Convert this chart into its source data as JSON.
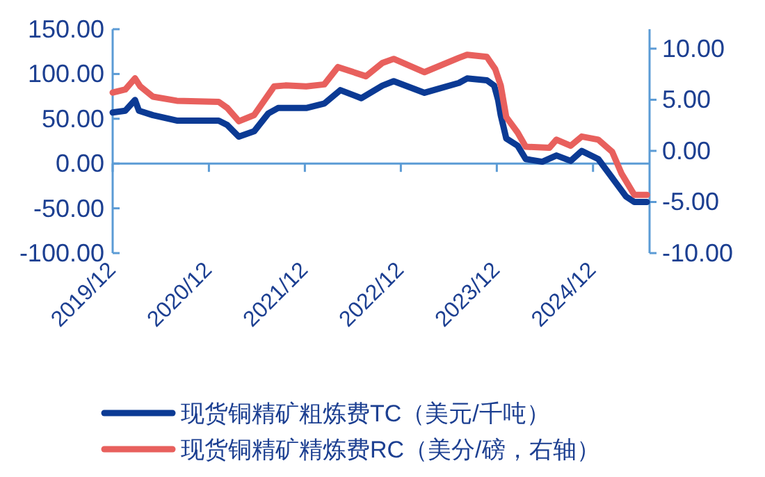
{
  "chart_data": {
    "type": "line",
    "legend": "bottom",
    "grid": false,
    "line_style": "solid",
    "marker": "none",
    "xlim": [
      "2019-12-01",
      "2025-07-04"
    ],
    "xticks": [
      {
        "value": "2019-12",
        "label": "2019/12"
      },
      {
        "value": "2020-12",
        "label": "2020/12"
      },
      {
        "value": "2021-12",
        "label": "2021/12"
      },
      {
        "value": "2022-12",
        "label": "2022/12"
      },
      {
        "value": "2023-12",
        "label": "2023/12"
      },
      {
        "value": "2024-12",
        "label": "2024/12"
      }
    ],
    "ref_lines": [
      {
        "axis": "y",
        "value": 0,
        "color": "#5b9bd5"
      }
    ],
    "ylim": [
      -100,
      150
    ],
    "yticks": [
      {
        "value": -100,
        "label": "-100.00"
      },
      {
        "value": -50,
        "label": "-50.00"
      },
      {
        "value": 0,
        "label": "0.00"
      },
      {
        "value": 50,
        "label": "50.00"
      },
      {
        "value": 100,
        "label": "100.00"
      },
      {
        "value": 150,
        "label": "150.00"
      }
    ],
    "y2lim": [
      -10,
      11.9
    ],
    "y2ticks": [
      {
        "value": -10,
        "label": "-10.00"
      },
      {
        "value": -5,
        "label": "-5.00"
      },
      {
        "value": 0,
        "label": "0.00"
      },
      {
        "value": 5,
        "label": "5.00"
      },
      {
        "value": 10,
        "label": "10.00"
      }
    ],
    "series": [
      {
        "name": "现货铜精矿粗炼费TC（美元/千吨）",
        "color": "#0b3a94",
        "x": [
          "2019-12-01",
          "2020-01-18",
          "2020-02-24",
          "2020-03-10",
          "2020-05-02",
          "2020-08-01",
          "2021-01-07",
          "2021-02-09",
          "2021-03-25",
          "2021-05-22",
          "2021-07-15",
          "2021-08-21",
          "2021-12-06",
          "2022-02-13",
          "2022-04-15",
          "2022-07-04",
          "2022-09-22",
          "2022-11-04",
          "2023-03-01",
          "2023-07-10",
          "2023-08-10",
          "2023-10-24",
          "2023-11-21",
          "2023-12-06",
          "2023-12-16",
          "2024-01-06",
          "2024-02-18",
          "2024-03-20",
          "2024-05-22",
          "2024-07-15",
          "2024-09-07",
          "2024-10-19",
          "2024-12-21",
          "2025-02-12",
          "2025-04-06",
          "2025-05-07",
          "2025-06-24"
        ],
        "values": [
          57,
          59,
          71,
          59,
          54,
          48,
          48,
          43,
          30,
          36,
          56,
          62,
          62,
          67,
          82,
          73,
          87,
          92,
          79,
          90,
          95,
          93,
          87,
          71,
          54,
          28,
          20,
          5,
          2,
          9,
          3,
          14,
          5,
          -16,
          -37,
          -43,
          -43
        ]
      },
      {
        "name": "现货铜精矿精炼费RC（美分/磅，右轴）",
        "color": "#e8605d",
        "axis": "y2",
        "x": [
          "2019-12-01",
          "2020-01-18",
          "2020-02-24",
          "2020-03-15",
          "2020-05-02",
          "2020-08-01",
          "2021-01-07",
          "2021-02-09",
          "2021-03-25",
          "2021-05-22",
          "2021-08-06",
          "2021-09-18",
          "2021-12-06",
          "2022-02-13",
          "2022-04-06",
          "2022-07-21",
          "2022-09-22",
          "2022-11-04",
          "2023-03-01",
          "2023-07-10",
          "2023-08-10",
          "2023-10-24",
          "2023-11-25",
          "2023-12-16",
          "2024-01-06",
          "2024-02-18",
          "2024-03-20",
          "2024-06-18",
          "2024-07-15",
          "2024-09-07",
          "2024-10-19",
          "2024-12-21",
          "2025-02-12",
          "2025-03-19",
          "2025-05-07",
          "2025-06-24"
        ],
        "values": [
          5.7,
          6.0,
          7.1,
          6.3,
          5.3,
          4.9,
          4.8,
          4.2,
          2.9,
          3.5,
          6.3,
          6.4,
          6.3,
          6.5,
          8.2,
          7.3,
          8.6,
          9.0,
          7.7,
          9.1,
          9.4,
          9.2,
          8.0,
          6.4,
          3.3,
          1.8,
          0.4,
          0.3,
          1.1,
          0.5,
          1.4,
          1.1,
          -0.1,
          -2.2,
          -4.3,
          -4.3
        ]
      }
    ]
  }
}
